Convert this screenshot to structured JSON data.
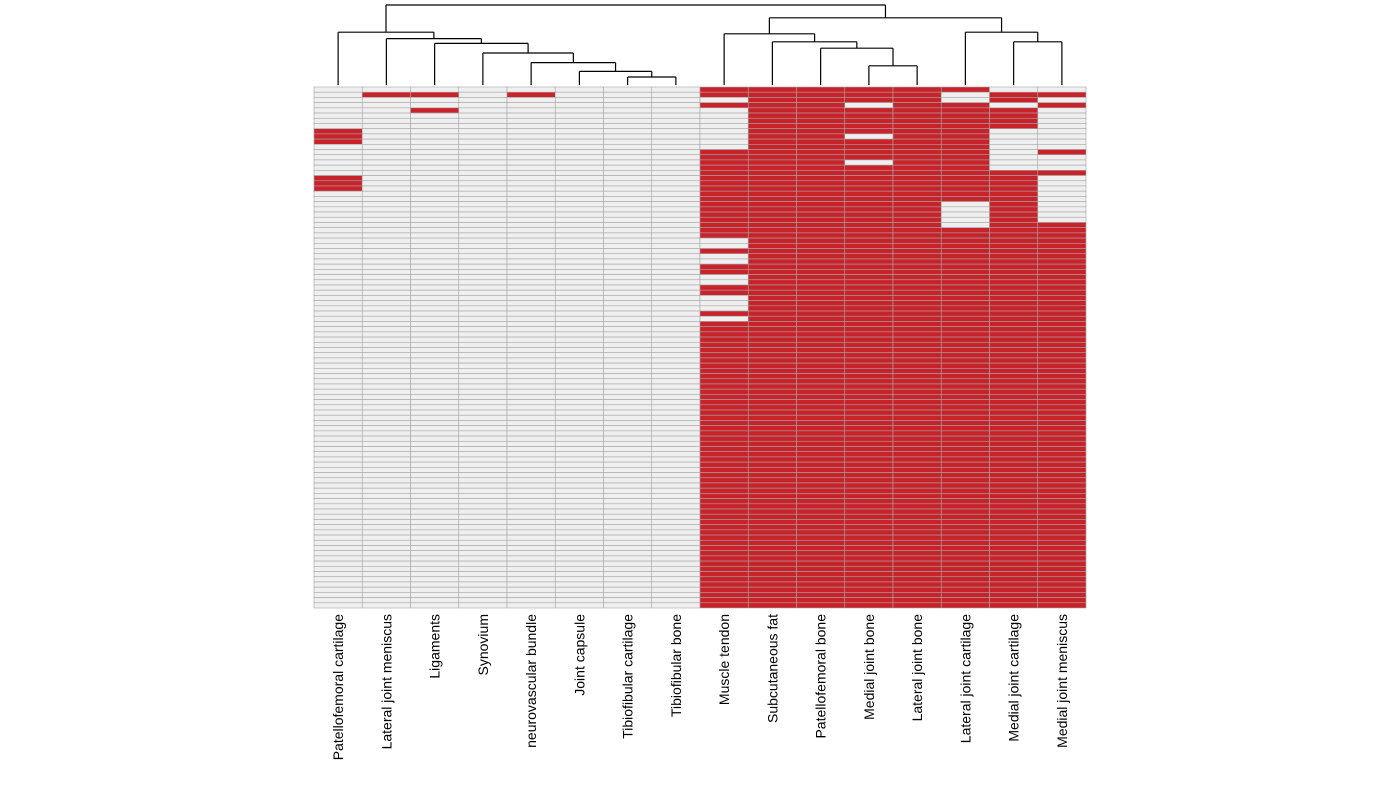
{
  "chart_data": {
    "type": "heatmap",
    "title": "",
    "columns": [
      "Patellofemoral cartilage",
      "Lateral joint meniscus",
      "Ligaments",
      "Synovium",
      "neurovascular bundle",
      "Joint capsule",
      "Tibiofibular cartilage",
      "Tibiofibular bone",
      "Muscle tendon",
      "Subcutaneous fat",
      "Patellofemoral bone",
      "Medial joint bone",
      "Lateral joint bone",
      "Lateral joint cartilage",
      "Medial joint cartilage",
      "Medial joint meniscus"
    ],
    "n_rows": 100,
    "legend": "none",
    "colors": {
      "present": "#c8232a",
      "absent": "#efefef",
      "grid": "#a6a6a6",
      "dendrogram": "#000000"
    },
    "values": [
      "0000000011111100",
      "0110100011111011",
      "0000000001111010",
      "0000000011101101",
      "0010000001111110",
      "0000000001111110",
      "0000000001111110",
      "0000000001111110",
      "1000000001111100",
      "1000000001101100",
      "1000000001111100",
      "0000000001111100",
      "0000000011111101",
      "0000000011111100",
      "0000000011101100",
      "0000000011111100",
      "0000000011111111",
      "1000000011111110",
      "1000000011111110",
      "1000000011111110",
      "0000000011111110",
      "0000000011111110",
      "0000000011111010",
      "0000000011111010",
      "0000000011111010",
      "0000000011111010",
      "0000000011111011",
      "0000000011111111",
      "0000000011111111",
      "0000000001111111",
      "0000000001111111",
      "0000000011111111",
      "0000000001111111",
      "0000000001111111",
      "0000000011111111",
      "0000000011111111",
      "0000000001111111",
      "0000000001111111",
      "0000000011111111",
      "0000000011111111",
      "0000000001111111",
      "0000000001111111",
      "0000000001111111",
      "0000000011111111",
      "0000000001111111",
      "0000000011111111",
      "0000000011111111",
      "0000000011111111",
      "0000000011111111",
      "0000000011111111",
      "0000000011111111",
      "0000000011111111",
      "0000000011111111",
      "0000000011111111",
      "0000000011111111",
      "0000000011111111",
      "0000000011111111",
      "0000000011111111",
      "0000000011111111",
      "0000000011111111",
      "0000000011111111",
      "0000000011111111",
      "0000000011111111",
      "0000000011111111",
      "0000000011111111",
      "0000000011111111",
      "0000000011111111",
      "0000000011111111",
      "0000000011111111",
      "0000000011111111",
      "0000000011111111",
      "0000000011111111",
      "0000000011111111",
      "0000000011111111",
      "0000000011111111",
      "0000000011111111",
      "0000000011111111",
      "0000000011111111",
      "0000000011111111",
      "0000000011111111",
      "0000000011111111",
      "0000000011111111",
      "0000000011111111",
      "0000000011111111",
      "0000000011111111",
      "0000000011111111",
      "0000000011111111",
      "0000000011111111",
      "0000000011111111",
      "0000000011111111",
      "0000000011111111",
      "0000000011111111",
      "0000000011111111",
      "0000000011111111",
      "0000000011111111",
      "0000000011111111",
      "0000000011111111",
      "0000000011111111",
      "0000000011111111",
      "0000000011111111"
    ],
    "column_dendrogram": {
      "leaf_order": [
        0,
        1,
        2,
        3,
        4,
        5,
        6,
        7,
        8,
        9,
        10,
        11,
        12,
        13,
        14,
        15
      ],
      "merges": [
        {
          "left": "Tibiofibular cartilage",
          "right": "Tibiofibular bone",
          "height": 0.1
        },
        {
          "left": "Joint capsule",
          "right": "Tibiofibular cartilage + Tibiofibular bone",
          "height": 0.17
        },
        {
          "left": "neurovascular bundle",
          "right": "Joint capsule cluster",
          "height": 0.28
        },
        {
          "left": "Synovium",
          "right": "neurovascular bundle cluster",
          "height": 0.4
        },
        {
          "left": "Ligaments",
          "right": "Synovium cluster",
          "height": 0.52
        },
        {
          "left": "Lateral joint meniscus",
          "right": "Ligaments cluster",
          "height": 0.58
        },
        {
          "left": "Patellofemoral cartilage",
          "right": "Lateral joint meniscus cluster",
          "height": 0.66
        },
        {
          "left": "Medial joint bone",
          "right": "Lateral joint bone",
          "height": 0.24
        },
        {
          "left": "Patellofemoral bone",
          "right": "Medial joint bone + Lateral joint bone",
          "height": 0.46
        },
        {
          "left": "Subcutaneous fat",
          "right": "Patellofemoral bone cluster",
          "height": 0.54
        },
        {
          "left": "Muscle tendon",
          "right": "Subcutaneous fat cluster",
          "height": 0.64
        },
        {
          "left": "Medial joint cartilage",
          "right": "Medial joint meniscus",
          "height": 0.54
        },
        {
          "left": "Lateral joint cartilage",
          "right": "Medial joint cartilage + Medial joint meniscus",
          "height": 0.66
        },
        {
          "left": "Muscle tendon cluster",
          "right": "Lateral joint cartilage cluster",
          "height": 0.84
        },
        {
          "left": "left cluster",
          "right": "right cluster",
          "height": 1.0
        }
      ]
    }
  }
}
